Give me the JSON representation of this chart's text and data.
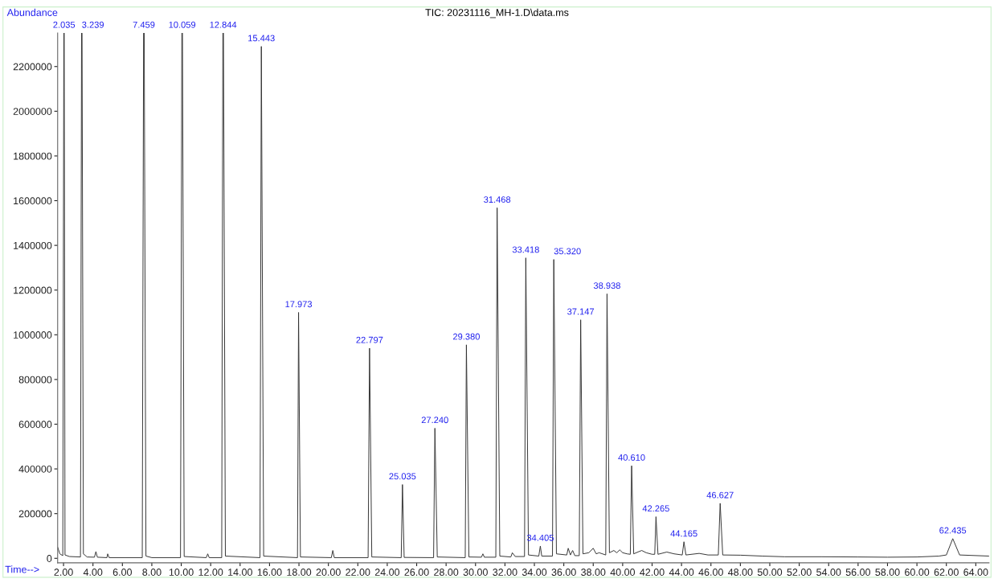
{
  "chart_data": {
    "type": "line",
    "title": "TIC: 20231116_MH-1.D\\data.ms",
    "xlabel": "Time-->",
    "ylabel": "Abundance",
    "xlim": [
      1.6,
      64.9
    ],
    "ylim": [
      -20000,
      2350000
    ],
    "xticks": [
      {
        "value": 2,
        "label": "2.00"
      },
      {
        "value": 4,
        "label": "4.00"
      },
      {
        "value": 6,
        "label": "6.00"
      },
      {
        "value": 8,
        "label": "8.00"
      },
      {
        "value": 10,
        "label": "10.00"
      },
      {
        "value": 12,
        "label": "12.00"
      },
      {
        "value": 14,
        "label": "14.00"
      },
      {
        "value": 16,
        "label": "16.00"
      },
      {
        "value": 18,
        "label": "18.00"
      },
      {
        "value": 20,
        "label": "20.00"
      },
      {
        "value": 22,
        "label": "22.00"
      },
      {
        "value": 24,
        "label": "24.00"
      },
      {
        "value": 26,
        "label": "26.00"
      },
      {
        "value": 28,
        "label": "28.00"
      },
      {
        "value": 30,
        "label": "30.00"
      },
      {
        "value": 32,
        "label": "32.00"
      },
      {
        "value": 34,
        "label": "34.00"
      },
      {
        "value": 36,
        "label": "36.00"
      },
      {
        "value": 38,
        "label": "38.00"
      },
      {
        "value": 40,
        "label": "40.00"
      },
      {
        "value": 42,
        "label": "42.00"
      },
      {
        "value": 44,
        "label": "44.00"
      },
      {
        "value": 46,
        "label": "46.00"
      },
      {
        "value": 48,
        "label": "48.00"
      },
      {
        "value": 50,
        "label": "50.00"
      },
      {
        "value": 52,
        "label": "52.00"
      },
      {
        "value": 54,
        "label": "54.00"
      },
      {
        "value": 56,
        "label": "56.00"
      },
      {
        "value": 58,
        "label": "58.00"
      },
      {
        "value": 60,
        "label": "60.00"
      },
      {
        "value": 62,
        "label": "62.00"
      },
      {
        "value": 64,
        "label": "64.00"
      }
    ],
    "yticks": [
      0,
      200000,
      400000,
      600000,
      800000,
      1000000,
      1200000,
      1400000,
      1600000,
      1800000,
      2000000,
      2200000
    ],
    "grid": false,
    "legend": false,
    "marker": "none",
    "line_style": "solid",
    "series": [
      {
        "color": "#333333",
        "x": [
          1.6,
          1.75,
          1.95,
          2.035,
          2.1,
          2.4,
          3.15,
          3.239,
          3.35,
          3.6,
          4.1,
          4.2,
          4.3,
          4.95,
          5.0,
          5.1,
          6.2,
          7.35,
          7.459,
          7.6,
          8.0,
          9.95,
          10.059,
          10.2,
          11.7,
          11.8,
          11.9,
          12.75,
          12.844,
          13.0,
          15.35,
          15.443,
          15.6,
          17.9,
          17.973,
          18.1,
          20.2,
          20.3,
          20.4,
          22.7,
          22.797,
          22.95,
          24.95,
          25.035,
          25.15,
          27.15,
          27.24,
          27.4,
          29.3,
          29.38,
          29.55,
          30.4,
          30.5,
          30.6,
          31.38,
          31.468,
          31.65,
          32.4,
          32.5,
          32.7,
          33.33,
          33.418,
          33.6,
          34.3,
          34.405,
          34.5,
          35.23,
          35.32,
          35.5,
          36.2,
          36.3,
          36.45,
          36.6,
          36.75,
          37.05,
          37.147,
          37.3,
          37.7,
          38.0,
          38.2,
          38.4,
          38.85,
          38.938,
          39.1,
          39.4,
          39.6,
          39.8,
          40.0,
          40.3,
          40.52,
          40.61,
          40.75,
          41.1,
          41.3,
          41.6,
          42.0,
          42.18,
          42.265,
          42.4,
          43.0,
          43.5,
          44.05,
          44.165,
          44.3,
          45.2,
          45.8,
          46.5,
          46.627,
          46.8,
          48.0,
          49.5,
          51.0,
          53.5,
          56.0,
          58.0,
          60.0,
          61.5,
          62.0,
          62.435,
          62.9,
          64.9
        ],
        "values": [
          50000,
          20000,
          12000,
          null,
          15000,
          8000,
          6000,
          null,
          20000,
          6000,
          5000,
          30000,
          5000,
          3000,
          20000,
          3000,
          3000,
          3000,
          null,
          10000,
          3000,
          3000,
          null,
          8000,
          3000,
          20000,
          3000,
          3000,
          null,
          10000,
          3000,
          2290000,
          10000,
          3000,
          1100000,
          6000,
          3000,
          35000,
          3000,
          3000,
          940000,
          6000,
          3000,
          330000,
          4000,
          3000,
          582000,
          6000,
          3000,
          955000,
          6000,
          5000,
          20000,
          5000,
          5000,
          1568000,
          10000,
          6000,
          25000,
          8000,
          8000,
          1344000,
          15000,
          10000,
          55000,
          10000,
          10000,
          1337000,
          20000,
          15000,
          45000,
          15000,
          35000,
          12000,
          12000,
          1067000,
          20000,
          25000,
          45000,
          20000,
          25000,
          15000,
          1183000,
          25000,
          35000,
          25000,
          38000,
          25000,
          20000,
          18000,
          414000,
          20000,
          30000,
          35000,
          25000,
          18000,
          18000,
          186000,
          18000,
          28000,
          20000,
          15000,
          74000,
          15000,
          22000,
          15000,
          15000,
          246000,
          15000,
          14000,
          10000,
          7000,
          7000,
          6000,
          5000,
          6000,
          10000,
          15000,
          88000,
          15000,
          10000
        ]
      }
    ],
    "annotations": [
      {
        "text": "2.035",
        "x": 2.035,
        "y": 2350000
      },
      {
        "text": "3.239",
        "x": 3.239,
        "y": 2350000
      },
      {
        "text": "7.459",
        "x": 7.459,
        "y": 2350000
      },
      {
        "text": "10.059",
        "x": 10.059,
        "y": 2350000
      },
      {
        "text": "12.844",
        "x": 12.844,
        "y": 2350000
      },
      {
        "text": "15.443",
        "x": 15.443,
        "y": 2290000
      },
      {
        "text": "17.973",
        "x": 17.973,
        "y": 1100000
      },
      {
        "text": "22.797",
        "x": 22.797,
        "y": 940000
      },
      {
        "text": "25.035",
        "x": 25.035,
        "y": 330000
      },
      {
        "text": "27.240",
        "x": 27.24,
        "y": 582000
      },
      {
        "text": "29.380",
        "x": 29.38,
        "y": 955000
      },
      {
        "text": "31.468",
        "x": 31.468,
        "y": 1568000
      },
      {
        "text": "33.418",
        "x": 33.418,
        "y": 1344000
      },
      {
        "text": "34.405",
        "x": 34.405,
        "y": 55000
      },
      {
        "text": "35.320",
        "x": 35.32,
        "y": 1337000
      },
      {
        "text": "37.147",
        "x": 37.147,
        "y": 1067000
      },
      {
        "text": "38.938",
        "x": 38.938,
        "y": 1183000
      },
      {
        "text": "40.610",
        "x": 40.61,
        "y": 414000
      },
      {
        "text": "42.265",
        "x": 42.265,
        "y": 186000
      },
      {
        "text": "44.165",
        "x": 44.165,
        "y": 74000
      },
      {
        "text": "46.627",
        "x": 46.627,
        "y": 246000
      },
      {
        "text": "62.435",
        "x": 62.435,
        "y": 88000
      }
    ]
  }
}
